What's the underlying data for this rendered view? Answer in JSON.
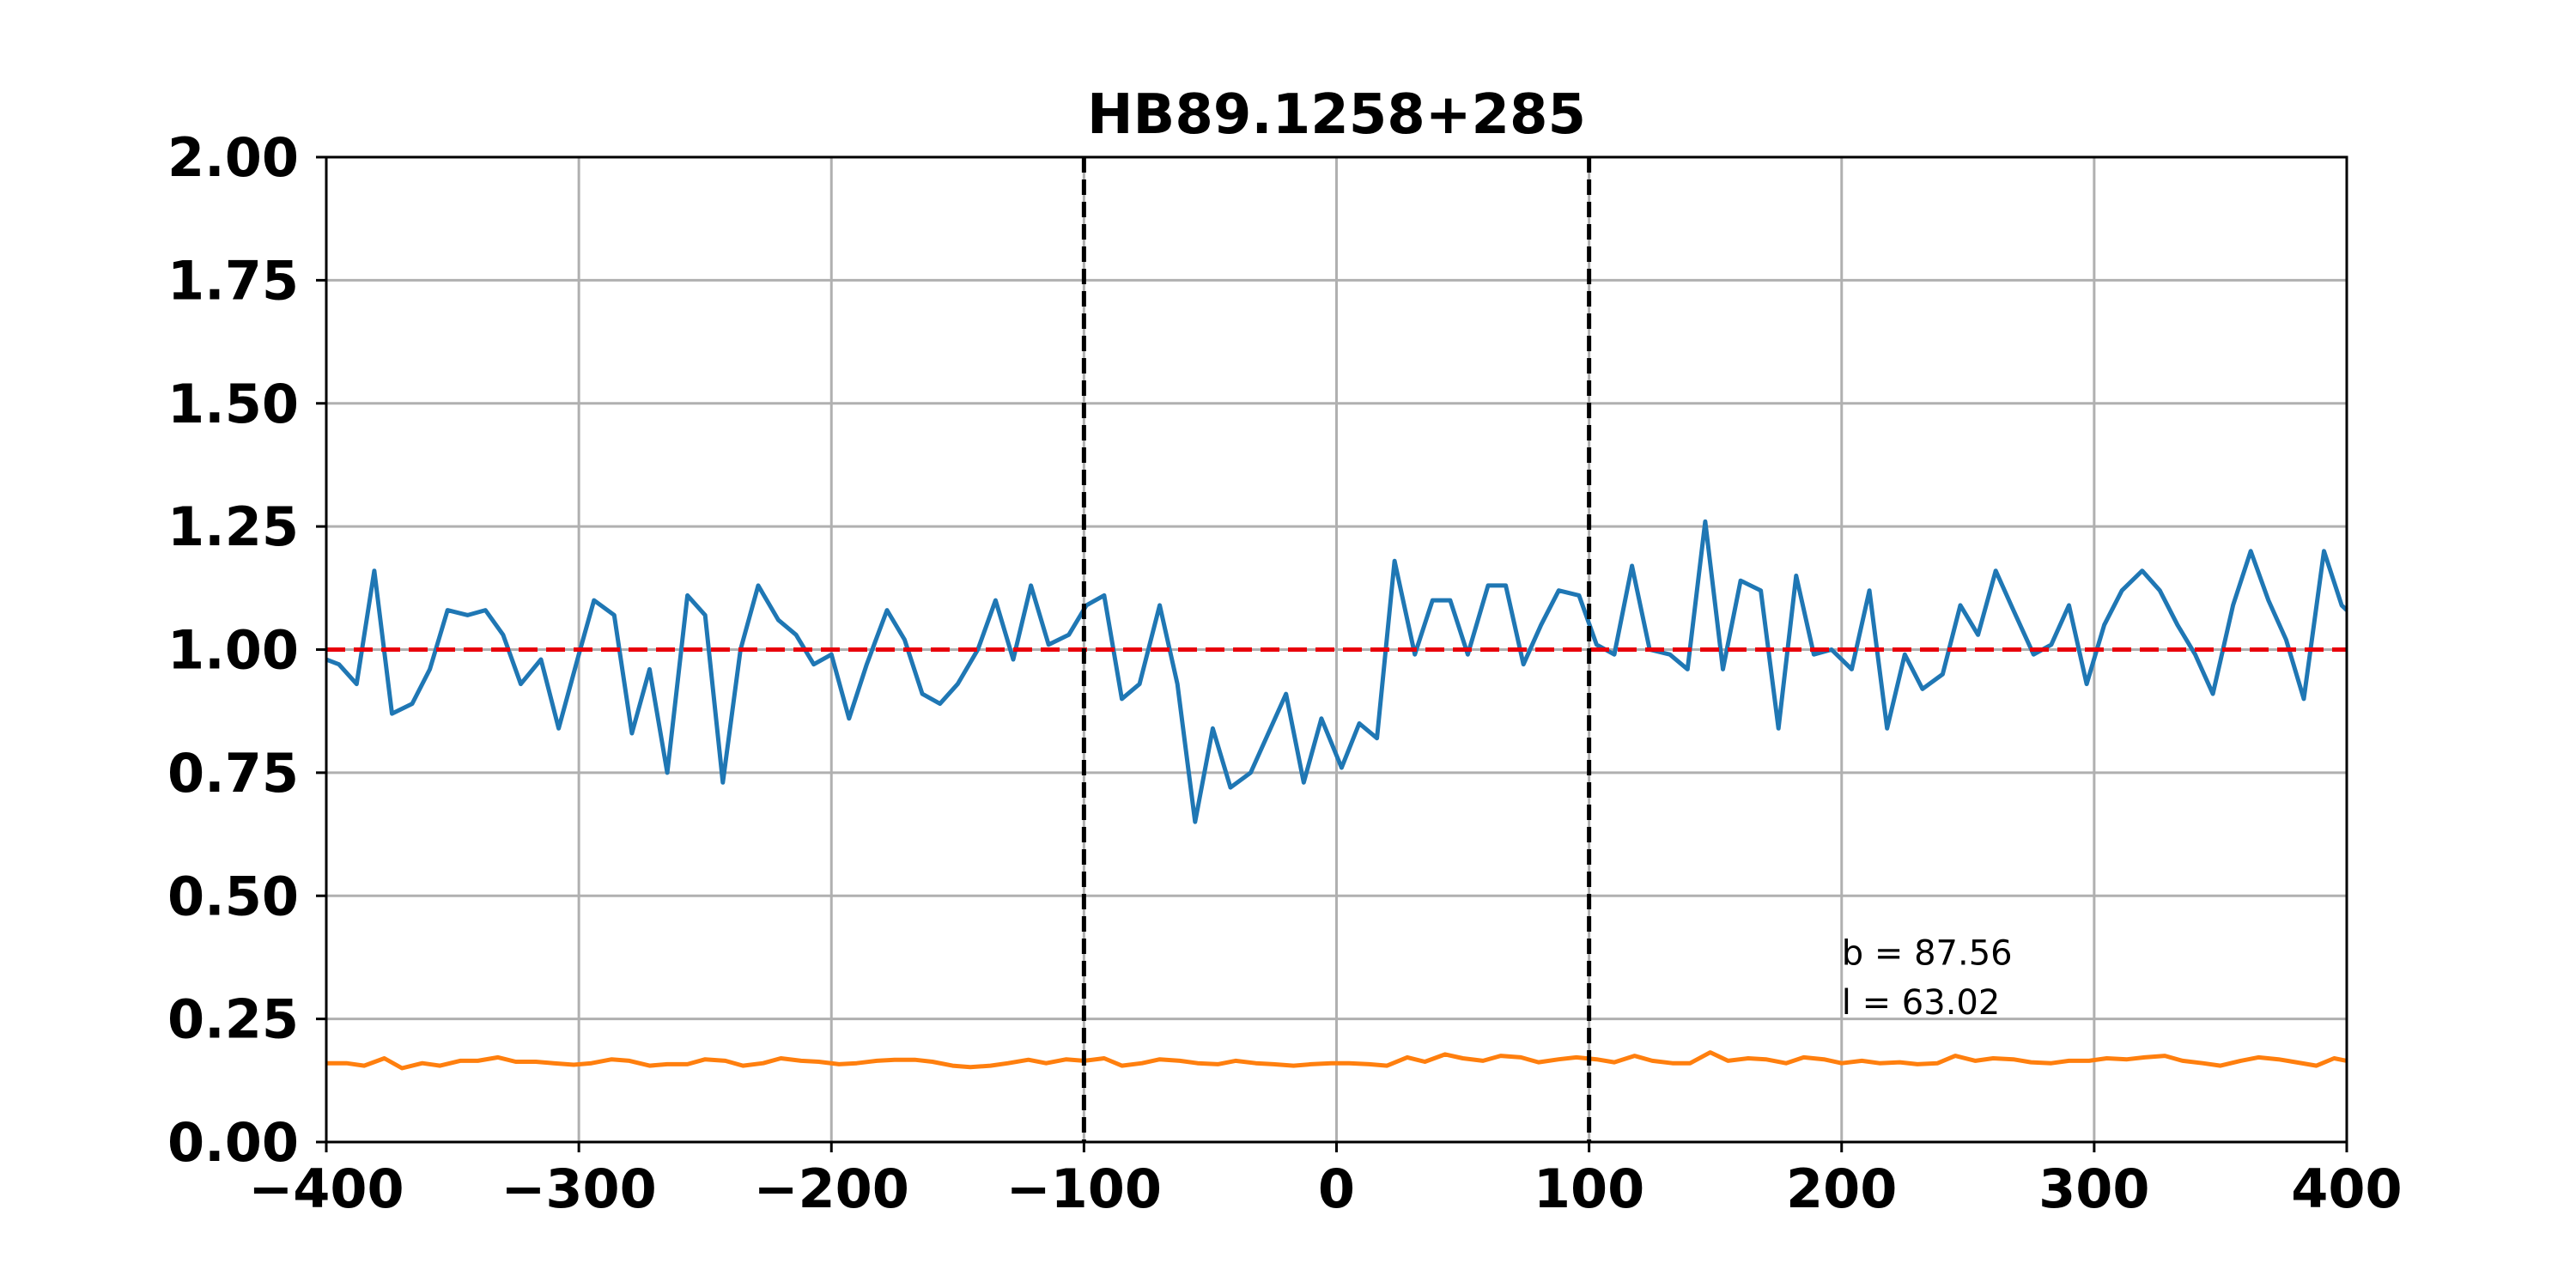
{
  "chart_data": {
    "type": "line",
    "title": "HB89.1258+285",
    "xlabel": "",
    "ylabel": "",
    "xlim": [
      -400,
      400
    ],
    "ylim": [
      0,
      2
    ],
    "grid": true,
    "xticks": [
      -400,
      -300,
      -200,
      -100,
      0,
      100,
      200,
      300,
      400
    ],
    "xtick_labels": [
      "−400",
      "−300",
      "−200",
      "−100",
      "0",
      "100",
      "200",
      "300",
      "400"
    ],
    "yticks": [
      0,
      0.25,
      0.5,
      0.75,
      1.0,
      1.25,
      1.5,
      1.75,
      2.0
    ],
    "ytick_labels": [
      "0.00",
      "0.25",
      "0.50",
      "0.75",
      "1.00",
      "1.25",
      "1.50",
      "1.75",
      "2.00"
    ],
    "vlines": [
      {
        "x": -100,
        "color": "#000000",
        "style": "dashed"
      },
      {
        "x": 100,
        "color": "#000000",
        "style": "dashed"
      }
    ],
    "hlines": [
      {
        "y": 1.0,
        "color": "#e8000b",
        "style": "dashed"
      }
    ],
    "annotations": [
      {
        "text": "b = 87.56",
        "x": 200,
        "y": 0.36
      },
      {
        "text": "l = 63.02",
        "x": 200,
        "y": 0.26
      }
    ],
    "series": [
      {
        "color": "#1f77b4",
        "x": [
          -400,
          -395,
          -388,
          -381,
          -374,
          -366,
          -359,
          -352,
          -344,
          -337,
          -330,
          -323,
          -315,
          -308,
          -300,
          -294,
          -286,
          -279,
          -272,
          -265,
          -257,
          -250,
          -243,
          -236,
          -229,
          -221,
          -214,
          -207,
          -200,
          -193,
          -186,
          -178,
          -171,
          -164,
          -157,
          -150,
          -142,
          -135,
          -128,
          -121,
          -114,
          -106,
          -99,
          -92,
          -85,
          -78,
          -70,
          -63,
          -56,
          -49,
          -42,
          -34,
          -27,
          -20,
          -13,
          -6,
          2,
          9,
          16,
          23,
          31,
          38,
          45,
          52,
          60,
          67,
          74,
          81,
          88,
          96,
          103,
          110,
          117,
          124,
          132,
          139,
          146,
          153,
          160,
          168,
          175,
          182,
          189,
          196,
          204,
          211,
          218,
          225,
          232,
          240,
          247,
          254,
          261,
          268,
          276,
          283,
          290,
          297,
          304,
          311,
          319,
          326,
          333,
          340,
          347,
          355,
          362,
          369,
          376,
          383,
          391,
          398,
          400
        ],
        "y": [
          0.98,
          0.97,
          0.93,
          1.16,
          0.87,
          0.89,
          0.96,
          1.08,
          1.07,
          1.08,
          1.03,
          0.93,
          0.98,
          0.84,
          0.99,
          1.1,
          1.07,
          0.83,
          0.96,
          0.75,
          1.11,
          1.07,
          0.73,
          1.0,
          1.13,
          1.06,
          1.03,
          0.97,
          0.99,
          0.86,
          0.97,
          1.08,
          1.02,
          0.91,
          0.89,
          0.93,
          1.0,
          1.1,
          0.98,
          1.13,
          1.01,
          1.03,
          1.09,
          1.11,
          0.9,
          0.93,
          1.09,
          0.93,
          0.65,
          0.84,
          0.72,
          0.75,
          0.83,
          0.91,
          0.73,
          0.86,
          0.76,
          0.85,
          0.82,
          1.18,
          0.99,
          1.1,
          1.1,
          0.99,
          1.13,
          1.13,
          0.97,
          1.05,
          1.12,
          1.11,
          1.01,
          0.99,
          1.17,
          1.0,
          0.99,
          0.96,
          1.26,
          0.96,
          1.14,
          1.12,
          0.84,
          1.15,
          0.99,
          1.0,
          0.96,
          1.12,
          0.84,
          0.99,
          0.92,
          0.95,
          1.09,
          1.03,
          1.16,
          1.08,
          0.99,
          1.01,
          1.09,
          0.93,
          1.05,
          1.12,
          1.16,
          1.12,
          1.05,
          0.99,
          0.91,
          1.09,
          1.2,
          1.1,
          1.02,
          0.9,
          1.2,
          1.09,
          1.08
        ]
      },
      {
        "color": "#ff7f0e",
        "x": [
          -400,
          -392,
          -385,
          -377,
          -370,
          -362,
          -355,
          -347,
          -340,
          -332,
          -325,
          -317,
          -310,
          -302,
          -295,
          -287,
          -280,
          -272,
          -265,
          -257,
          -250,
          -242,
          -235,
          -227,
          -220,
          -212,
          -205,
          -197,
          -190,
          -182,
          -175,
          -167,
          -160,
          -152,
          -145,
          -137,
          -130,
          -122,
          -115,
          -107,
          -100,
          -92,
          -85,
          -77,
          -70,
          -62,
          -55,
          -47,
          -40,
          -32,
          -25,
          -17,
          -10,
          -2,
          5,
          13,
          20,
          28,
          35,
          43,
          50,
          58,
          65,
          73,
          80,
          88,
          95,
          103,
          110,
          118,
          125,
          133,
          140,
          148,
          155,
          163,
          170,
          178,
          185,
          193,
          200,
          208,
          215,
          223,
          230,
          238,
          245,
          253,
          260,
          268,
          275,
          283,
          290,
          298,
          305,
          313,
          320,
          328,
          335,
          343,
          350,
          358,
          365,
          373,
          380,
          388,
          395,
          400
        ],
        "y": [
          0.16,
          0.16,
          0.155,
          0.17,
          0.15,
          0.16,
          0.155,
          0.165,
          0.165,
          0.172,
          0.163,
          0.163,
          0.16,
          0.157,
          0.16,
          0.168,
          0.165,
          0.155,
          0.158,
          0.158,
          0.168,
          0.165,
          0.155,
          0.16,
          0.17,
          0.165,
          0.163,
          0.158,
          0.16,
          0.165,
          0.167,
          0.167,
          0.163,
          0.155,
          0.152,
          0.155,
          0.16,
          0.167,
          0.16,
          0.168,
          0.165,
          0.17,
          0.155,
          0.16,
          0.168,
          0.165,
          0.16,
          0.158,
          0.165,
          0.16,
          0.158,
          0.155,
          0.158,
          0.16,
          0.16,
          0.158,
          0.155,
          0.172,
          0.163,
          0.178,
          0.17,
          0.165,
          0.175,
          0.172,
          0.162,
          0.168,
          0.172,
          0.168,
          0.162,
          0.175,
          0.165,
          0.16,
          0.16,
          0.182,
          0.165,
          0.17,
          0.168,
          0.16,
          0.172,
          0.168,
          0.16,
          0.165,
          0.16,
          0.162,
          0.158,
          0.16,
          0.175,
          0.165,
          0.17,
          0.168,
          0.162,
          0.16,
          0.165,
          0.165,
          0.17,
          0.168,
          0.172,
          0.175,
          0.165,
          0.16,
          0.155,
          0.165,
          0.172,
          0.168,
          0.162,
          0.155,
          0.17,
          0.165
        ]
      }
    ]
  }
}
